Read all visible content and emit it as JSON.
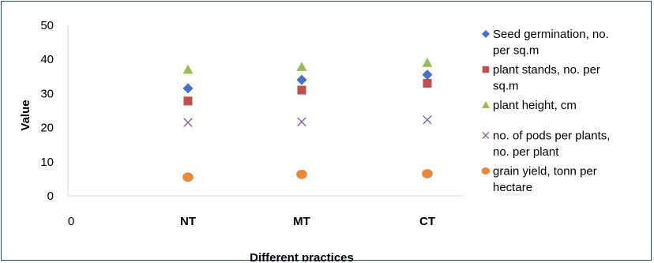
{
  "chart_data": {
    "type": "scatter",
    "xlabel": "Different practices",
    "ylabel": "Value",
    "x_origin_label": "0",
    "categories": [
      "NT",
      "MT",
      "CT"
    ],
    "ylim": [
      0,
      50
    ],
    "yticks": [
      0,
      10,
      20,
      30,
      40,
      50
    ],
    "grid": false,
    "legend_position": "right",
    "series": [
      {
        "name": "Seed germination, no. per sq.m",
        "legend_lines": [
          "Seed germination, no.",
          "per sq.m"
        ],
        "marker": "diamond",
        "color": "#4472c4",
        "values": [
          31.5,
          34,
          35.5
        ]
      },
      {
        "name": "plant stands, no. per sq.m",
        "legend_lines": [
          "plant stands, no. per",
          "sq.m"
        ],
        "marker": "square",
        "color": "#c0504d",
        "values": [
          27.8,
          31,
          33
        ]
      },
      {
        "name": "plant height, cm",
        "legend_lines": [
          "plant height, cm"
        ],
        "marker": "triangle",
        "color": "#9bbb59",
        "values": [
          37,
          37.8,
          39
        ]
      },
      {
        "name": "no. of pods per plants, no. per plant",
        "legend_lines": [
          "no. of pods per plants,",
          "no. per plant"
        ],
        "marker": "x",
        "color": "#8064a2",
        "values": [
          21.5,
          21.7,
          22.3
        ]
      },
      {
        "name": "grain yield, tonn per hectare",
        "legend_lines": [
          "grain yield, tonn per",
          "hectare"
        ],
        "marker": "circle",
        "color": "#e8883a",
        "values": [
          5.5,
          6.3,
          6.5
        ]
      }
    ]
  }
}
